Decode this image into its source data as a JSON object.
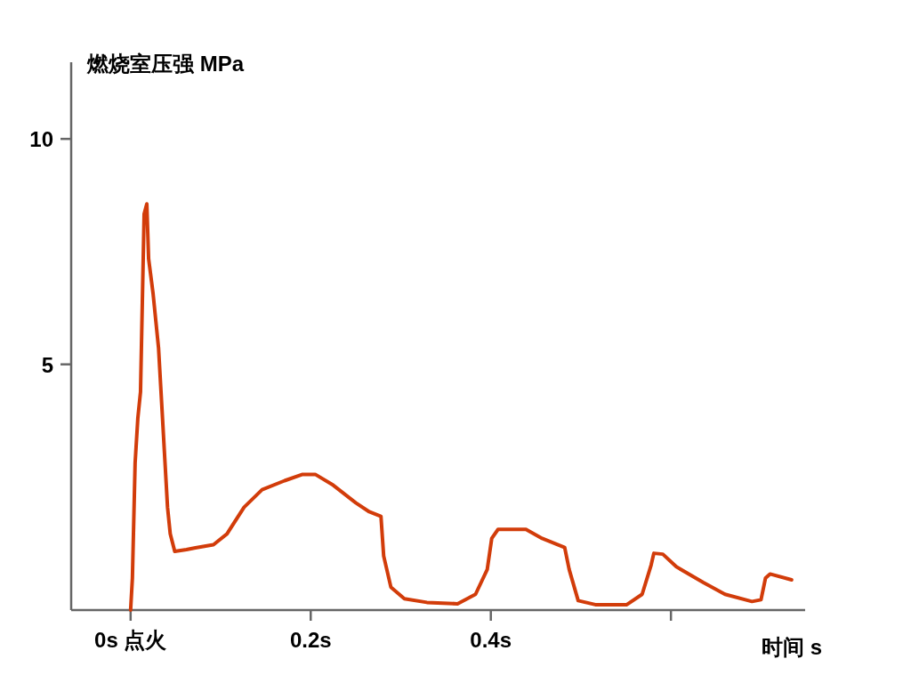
{
  "chart_data": {
    "type": "line",
    "ylabel": "燃烧室压强 MPa",
    "xlabel": "时间 s",
    "xlim": [
      -0.066,
      0.749
    ],
    "ylim": [
      -0.45,
      11.7
    ],
    "xticks": [
      {
        "value": 0,
        "label": "0s 点火"
      },
      {
        "value": 0.2,
        "label": "0.2s"
      },
      {
        "value": 0.4,
        "label": "0.4s"
      },
      {
        "value": 0.6,
        "label": null
      }
    ],
    "yticks": [
      5,
      10
    ],
    "series": [
      {
        "color": "#d23c0a",
        "x": [
          0,
          0.002,
          0.005,
          0.008,
          0.011,
          0.013,
          0.015,
          0.018,
          0.02,
          0.025,
          0.031,
          0.036,
          0.041,
          0.044,
          0.049,
          0.062,
          0.072,
          0.092,
          0.107,
          0.126,
          0.146,
          0.171,
          0.191,
          0.205,
          0.225,
          0.25,
          0.265,
          0.278,
          0.281,
          0.289,
          0.304,
          0.329,
          0.363,
          0.383,
          0.396,
          0.401,
          0.408,
          0.439,
          0.457,
          0.482,
          0.487,
          0.497,
          0.516,
          0.551,
          0.568,
          0.578,
          0.581,
          0.591,
          0.606,
          0.636,
          0.66,
          0.69,
          0.7,
          0.705,
          0.71,
          0.734
        ],
        "values": [
          -0.45,
          0.26,
          2.81,
          3.8,
          4.39,
          6.36,
          8.33,
          8.56,
          7.34,
          6.56,
          5.37,
          3.6,
          1.83,
          1.24,
          0.85,
          0.89,
          0.93,
          1.0,
          1.24,
          1.83,
          2.22,
          2.42,
          2.56,
          2.56,
          2.32,
          1.93,
          1.73,
          1.63,
          0.75,
          0.06,
          -0.2,
          -0.28,
          -0.31,
          -0.1,
          0.45,
          1.14,
          1.34,
          1.34,
          1.14,
          0.94,
          0.45,
          -0.24,
          -0.33,
          -0.33,
          -0.1,
          0.55,
          0.81,
          0.79,
          0.51,
          0.16,
          -0.1,
          -0.26,
          -0.22,
          0.26,
          0.35,
          0.22
        ]
      }
    ]
  }
}
